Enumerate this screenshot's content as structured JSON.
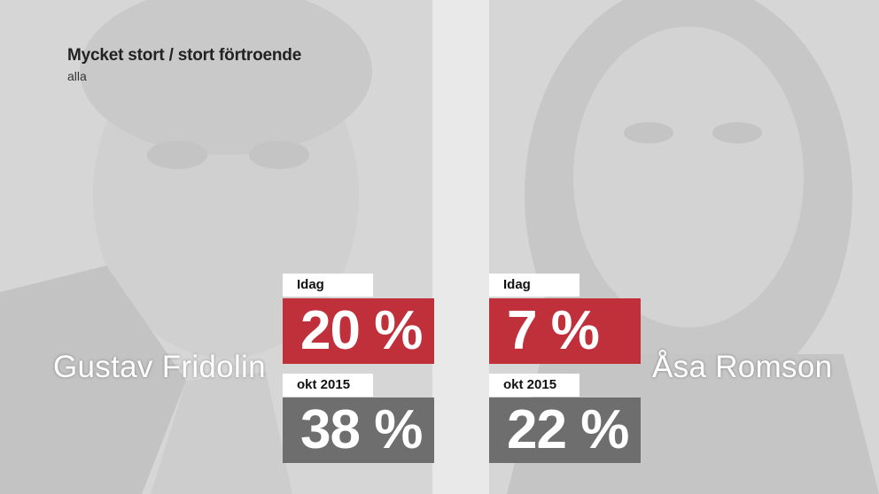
{
  "chart_data": {
    "type": "table",
    "title": "Mycket stort / stort förtroende",
    "subtitle": "alla",
    "categories": [
      "Gustav Fridolin",
      "Åsa Romson"
    ],
    "series": [
      {
        "name": "Idag",
        "values": [
          20,
          7
        ]
      },
      {
        "name": "okt 2015",
        "values": [
          38,
          22
        ]
      }
    ],
    "unit": "%",
    "colors": {
      "Idag": "#c0303b",
      "okt 2015": "#6e6e6e"
    },
    "value_labels": {
      "gustav_idag": "20 %",
      "gustav_okt": "38 %",
      "asa_idag": "7 %",
      "asa_okt": "22 %"
    }
  }
}
